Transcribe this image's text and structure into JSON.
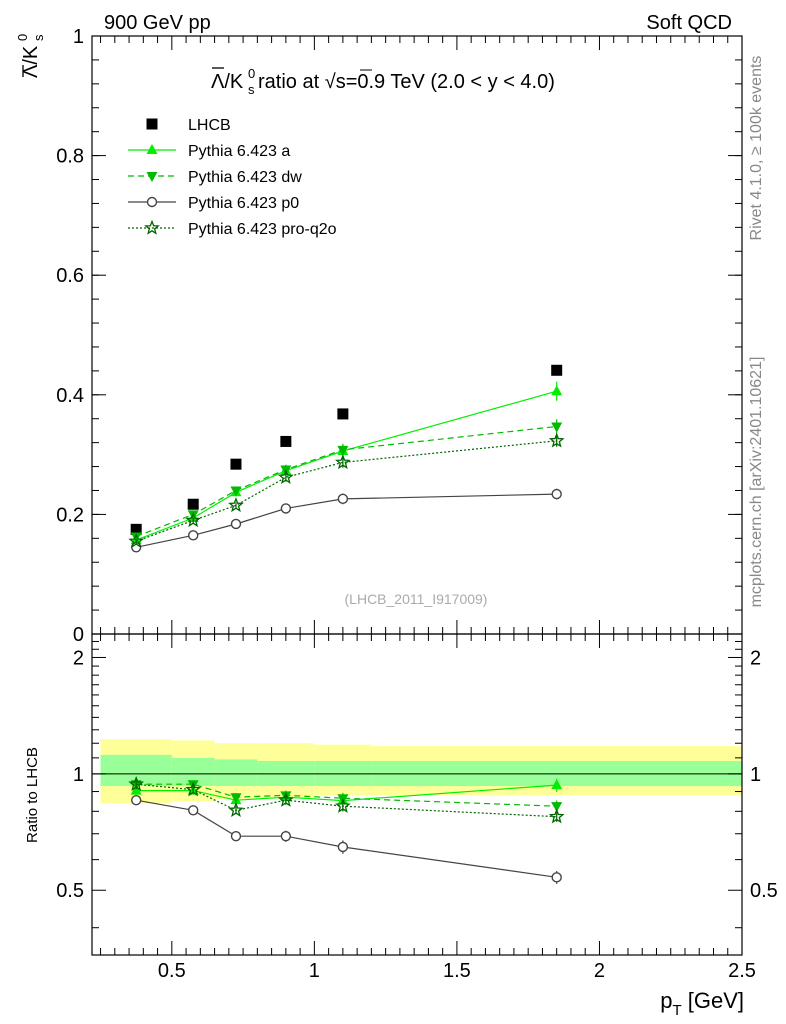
{
  "header": {
    "left": "900 GeV pp",
    "right": "Soft QCD"
  },
  "side_labels": {
    "rivet": "Rivet 4.1.0, ≥ 100k events",
    "mcplots": "mcplots.cern.ch [arXiv:2401.10621]"
  },
  "chart_data": {
    "type": "scatter",
    "title": "Λ̅/K⁰ₛ ratio at √s=0.9 TeV (2.0 < y < 4.0)",
    "title_parts": {
      "prefix": " ratio at ",
      "sqrt": "√",
      "suffix": "s=0.9 TeV (2.0 < y < 4.0)"
    },
    "analysis_id": "(LHCB_2011_I917009)",
    "xlabel": "p_T [GeV]",
    "xlabel_parts": {
      "p": "p",
      "sub": "T",
      "unit": " [GeV]"
    },
    "ylabel": "Λ̅/K⁰ₛ",
    "ratio_ylabel": "Ratio to LHCB",
    "xlim": [
      0.22,
      2.5
    ],
    "ylim": [
      0,
      1.0
    ],
    "ratio_ylim": [
      0.34,
      2.3
    ],
    "x_ticks": [
      0.5,
      1,
      1.5,
      2,
      2.5
    ],
    "x_tick_labels": [
      "0.5",
      "1",
      "1.5",
      "2",
      "2.5"
    ],
    "y_ticks": [
      0,
      0.2,
      0.4,
      0.6,
      0.8,
      1
    ],
    "y_tick_labels": [
      "0",
      "0.2",
      "0.4",
      "0.6",
      "0.8",
      "1"
    ],
    "ratio_ticks": [
      0.5,
      1,
      2
    ],
    "ratio_tick_labels": [
      "0.5",
      "1",
      "2"
    ],
    "x": [
      0.375,
      0.575,
      0.725,
      0.9,
      1.1,
      1.85
    ],
    "bins": [
      [
        0.25,
        0.5
      ],
      [
        0.5,
        0.65
      ],
      [
        0.65,
        0.8
      ],
      [
        0.8,
        1.0
      ],
      [
        1.0,
        1.2
      ],
      [
        1.2,
        2.5
      ]
    ],
    "legend_position": "top-left",
    "series": [
      {
        "name": "LHCB",
        "marker": "square",
        "color": "#000000",
        "values": [
          0.175,
          0.217,
          0.284,
          0.322,
          0.368,
          0.441
        ]
      },
      {
        "name": "Pythia 6.423 a",
        "marker": "triangle-up",
        "line": "solid",
        "color": "#00ee00",
        "values": [
          0.157,
          0.194,
          0.237,
          0.273,
          0.306,
          0.406
        ],
        "errors": [
          0.004,
          0.004,
          0.006,
          0.008,
          0.01,
          0.016
        ],
        "ratio": [
          0.905,
          0.905,
          0.855,
          0.87,
          0.853,
          0.935
        ]
      },
      {
        "name": "Pythia 6.423 dw",
        "marker": "triangle-down",
        "line": "dashed",
        "color": "#00bb00",
        "values": [
          0.163,
          0.2,
          0.24,
          0.275,
          0.308,
          0.347
        ],
        "errors": [
          0.004,
          0.004,
          0.006,
          0.008,
          0.01,
          0.012
        ],
        "ratio": [
          0.94,
          0.94,
          0.87,
          0.88,
          0.865,
          0.825
        ]
      },
      {
        "name": "Pythia 6.423 p0",
        "marker": "open-circle",
        "line": "solid",
        "color": "#444444",
        "values": [
          0.145,
          0.165,
          0.184,
          0.21,
          0.226,
          0.234
        ],
        "errors": [
          0.004,
          0.004,
          0.005,
          0.007,
          0.009,
          0.009
        ],
        "ratio": [
          0.855,
          0.805,
          0.69,
          0.69,
          0.647,
          0.54
        ]
      },
      {
        "name": "Pythia 6.423 pro-q2o",
        "marker": "open-star",
        "line": "dotted",
        "color": "#006600",
        "values": [
          0.155,
          0.19,
          0.215,
          0.262,
          0.287,
          0.323
        ],
        "errors": [
          0.004,
          0.004,
          0.005,
          0.007,
          0.009,
          0.01
        ],
        "ratio": [
          0.94,
          0.91,
          0.805,
          0.855,
          0.825,
          0.775
        ]
      }
    ],
    "ratio_bands": {
      "inner_color": "#99ff99",
      "outer_color": "#ffff99",
      "inner": [
        [
          0.93,
          1.12
        ],
        [
          0.93,
          1.1
        ],
        [
          0.93,
          1.09
        ],
        [
          0.93,
          1.08
        ],
        [
          0.93,
          1.08
        ],
        [
          0.93,
          1.08
        ]
      ],
      "outer": [
        [
          0.84,
          1.23
        ],
        [
          0.85,
          1.22
        ],
        [
          0.86,
          1.2
        ],
        [
          0.87,
          1.2
        ],
        [
          0.88,
          1.19
        ],
        [
          0.88,
          1.18
        ]
      ]
    }
  }
}
